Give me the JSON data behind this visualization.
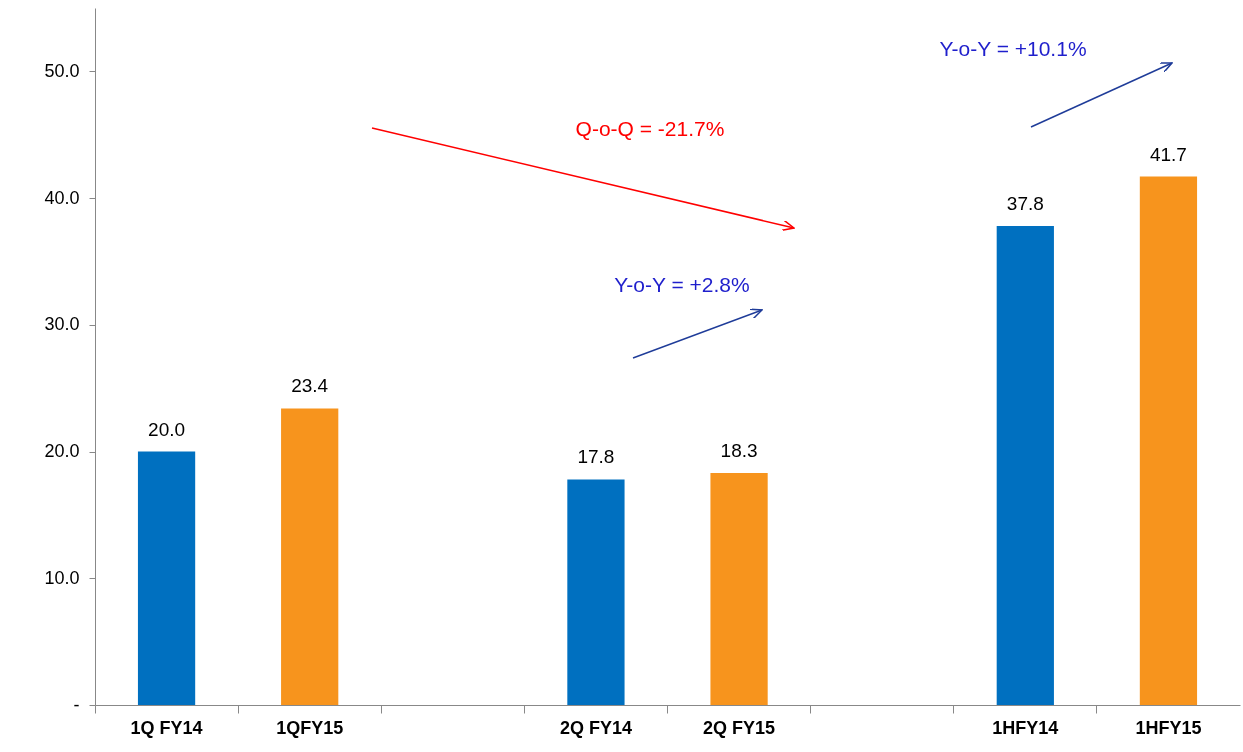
{
  "chart_data": {
    "type": "bar",
    "categories": [
      "1Q FY14",
      "1QFY15",
      null,
      "2Q FY14",
      "2Q FY15",
      null,
      "1HFY14",
      "1HFY15"
    ],
    "values": [
      20.0,
      23.4,
      null,
      17.8,
      18.3,
      null,
      37.8,
      41.7
    ],
    "colors": [
      "#0070c0",
      "#f7941d",
      null,
      "#0070c0",
      "#f7941d",
      null,
      "#0070c0",
      "#f7941d"
    ],
    "ylim": [
      0,
      55
    ],
    "yticks": [
      {
        "value": 0,
        "label": "-"
      },
      {
        "value": 10,
        "label": "10.0"
      },
      {
        "value": 20,
        "label": "20.0"
      },
      {
        "value": 30,
        "label": "30.0"
      },
      {
        "value": 40,
        "label": "40.0"
      },
      {
        "value": 50,
        "label": "50.0"
      }
    ],
    "value_labels": [
      "20.0",
      "23.4",
      null,
      "17.8",
      "18.3",
      null,
      "37.8",
      "41.7"
    ],
    "grid": false,
    "annotations": [
      "Q-o-Q = -21.7%",
      "Y-o-Y = +2.8%",
      "Y-o-Y = +10.1%"
    ]
  }
}
